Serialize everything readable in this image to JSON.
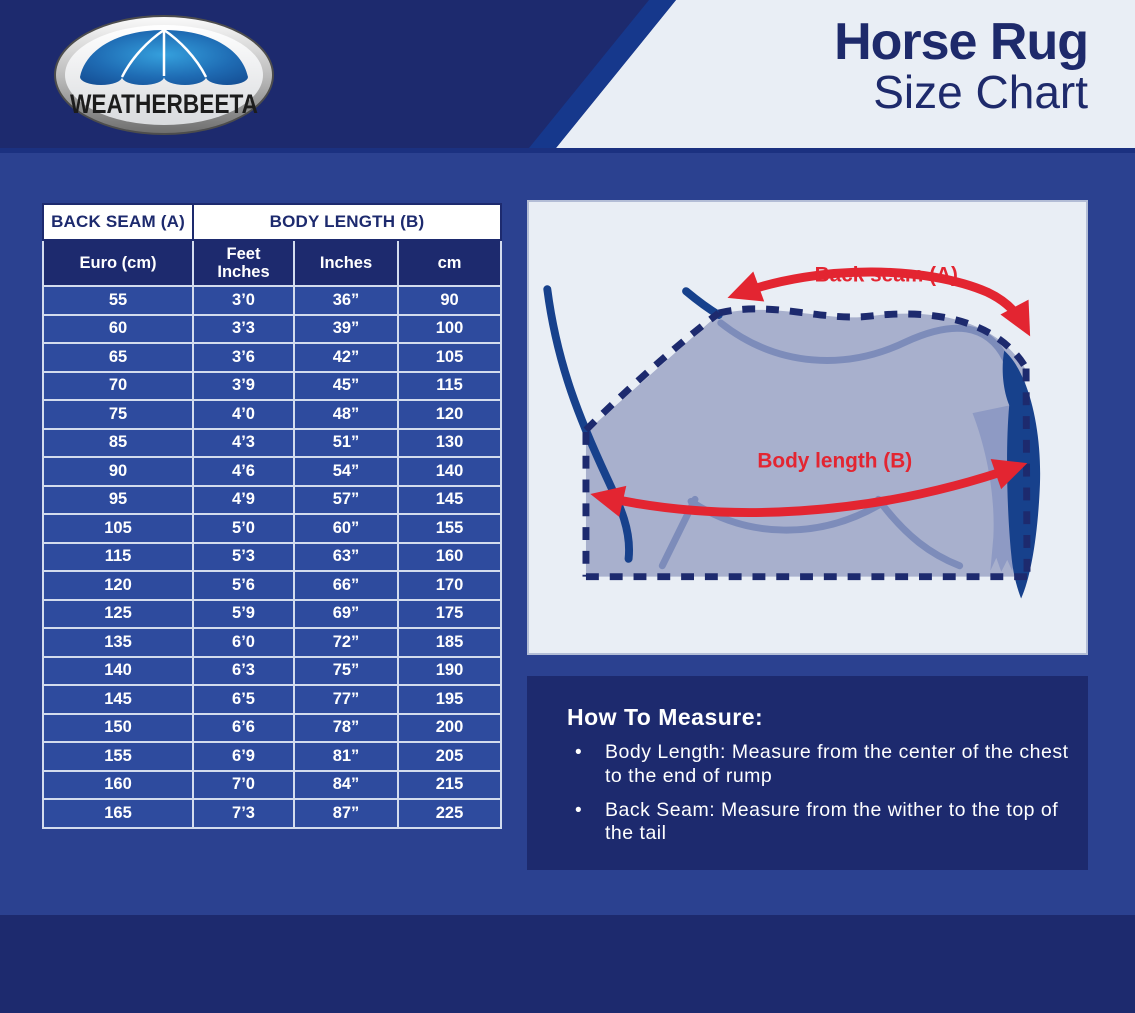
{
  "brand": {
    "logo_text": "WEATHERBEETA"
  },
  "header": {
    "title_line1": "Horse Rug",
    "title_line2": "Size Chart"
  },
  "table": {
    "group_headers": [
      "BACK SEAM (A)",
      "BODY LENGTH (B)"
    ],
    "col_headers": [
      "Euro (cm)",
      "Feet\nInches",
      "Inches",
      "cm"
    ],
    "rows": [
      [
        "55",
        "3’0",
        "36”",
        "90"
      ],
      [
        "60",
        "3’3",
        "39”",
        "100"
      ],
      [
        "65",
        "3’6",
        "42”",
        "105"
      ],
      [
        "70",
        "3’9",
        "45”",
        "115"
      ],
      [
        "75",
        "4’0",
        "48”",
        "120"
      ],
      [
        "85",
        "4’3",
        "51”",
        "130"
      ],
      [
        "90",
        "4’6",
        "54”",
        "140"
      ],
      [
        "95",
        "4’9",
        "57”",
        "145"
      ],
      [
        "105",
        "5’0",
        "60”",
        "155"
      ],
      [
        "115",
        "5’3",
        "63”",
        "160"
      ],
      [
        "120",
        "5’6",
        "66”",
        "170"
      ],
      [
        "125",
        "5’9",
        "69”",
        "175"
      ],
      [
        "135",
        "6’0",
        "72”",
        "185"
      ],
      [
        "140",
        "6’3",
        "75”",
        "190"
      ],
      [
        "145",
        "6’5",
        "77”",
        "195"
      ],
      [
        "150",
        "6’6",
        "78”",
        "200"
      ],
      [
        "155",
        "6’9",
        "81”",
        "205"
      ],
      [
        "160",
        "7’0",
        "84”",
        "215"
      ],
      [
        "165",
        "7’3",
        "87”",
        "225"
      ]
    ]
  },
  "diagram": {
    "back_seam_label": "Back seam (A)",
    "body_length_label": "Body length (B)"
  },
  "how_to_measure": {
    "heading": "How To Measure:",
    "items": [
      "Body Length: Measure from the center of the chest to the end of rump",
      "Back Seam: Measure from the wither to the top of the tail"
    ]
  },
  "colors": {
    "navy": "#1d2a6e",
    "band_blue": "#2b4190",
    "cell_blue": "#2e4b9e",
    "grid_line": "#d3dcee",
    "panel_bg": "#e9eef5",
    "title_navy": "#1e2a6b",
    "accent_red": "#e32531",
    "horse_body": "#a8b0cd",
    "horse_line": "#7d8cba",
    "horse_dark_blue": "#17418c"
  }
}
